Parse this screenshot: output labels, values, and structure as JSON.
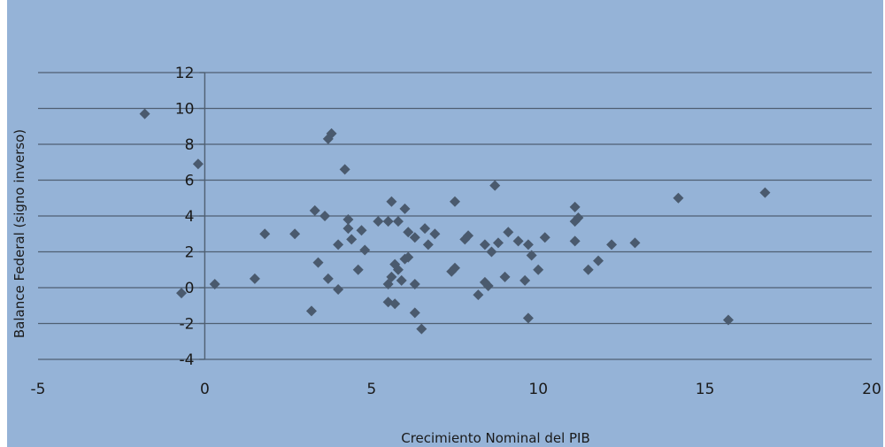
{
  "chart_data": {
    "type": "scatter",
    "xlabel": "Crecimiento Nominal del PIB",
    "ylabel": "Balance Federal (signo inverso)",
    "xlim": [
      -5,
      20
    ],
    "ylim": [
      -4,
      12
    ],
    "x_ticks": [
      -5,
      0,
      5,
      10,
      15,
      20
    ],
    "y_ticks": [
      -4,
      -2,
      0,
      2,
      4,
      6,
      8,
      10,
      12
    ],
    "horizontal_grid": true,
    "legend": "none",
    "colors": {
      "background": "#95b3d7",
      "marker": "#4a5a6e",
      "gridline": "#4f5f72",
      "axis": "#4f5f72"
    },
    "points": [
      {
        "x": -1.8,
        "y": 9.7
      },
      {
        "x": -0.2,
        "y": 6.9
      },
      {
        "x": -0.7,
        "y": -0.3
      },
      {
        "x": 0.3,
        "y": 0.2
      },
      {
        "x": 1.5,
        "y": 0.5
      },
      {
        "x": 1.8,
        "y": 3.0
      },
      {
        "x": 2.7,
        "y": 3.0
      },
      {
        "x": 3.2,
        "y": -1.3
      },
      {
        "x": 3.3,
        "y": 4.3
      },
      {
        "x": 3.4,
        "y": 1.4
      },
      {
        "x": 3.6,
        "y": 4.0
      },
      {
        "x": 3.7,
        "y": 8.3
      },
      {
        "x": 3.8,
        "y": 8.6
      },
      {
        "x": 3.7,
        "y": 0.5
      },
      {
        "x": 4.0,
        "y": -0.1
      },
      {
        "x": 4.0,
        "y": 2.4
      },
      {
        "x": 4.2,
        "y": 6.6
      },
      {
        "x": 4.3,
        "y": 3.8
      },
      {
        "x": 4.3,
        "y": 3.3
      },
      {
        "x": 4.4,
        "y": 2.7
      },
      {
        "x": 4.6,
        "y": 1.0
      },
      {
        "x": 4.7,
        "y": 3.2
      },
      {
        "x": 4.8,
        "y": 2.1
      },
      {
        "x": 5.2,
        "y": 3.7
      },
      {
        "x": 5.5,
        "y": 3.7
      },
      {
        "x": 5.5,
        "y": 0.2
      },
      {
        "x": 5.5,
        "y": -0.8
      },
      {
        "x": 5.6,
        "y": 4.8
      },
      {
        "x": 5.6,
        "y": 0.6
      },
      {
        "x": 5.7,
        "y": 1.3
      },
      {
        "x": 5.7,
        "y": -0.9
      },
      {
        "x": 5.8,
        "y": 3.7
      },
      {
        "x": 5.8,
        "y": 1.0
      },
      {
        "x": 5.9,
        "y": 0.4
      },
      {
        "x": 6.0,
        "y": 4.4
      },
      {
        "x": 6.0,
        "y": 1.6
      },
      {
        "x": 6.1,
        "y": 1.7
      },
      {
        "x": 6.1,
        "y": 3.1
      },
      {
        "x": 6.3,
        "y": 2.8
      },
      {
        "x": 6.3,
        "y": 0.2
      },
      {
        "x": 6.3,
        "y": -1.4
      },
      {
        "x": 6.5,
        "y": -2.3
      },
      {
        "x": 6.6,
        "y": 3.3
      },
      {
        "x": 6.7,
        "y": 2.4
      },
      {
        "x": 6.9,
        "y": 3.0
      },
      {
        "x": 7.4,
        "y": 0.9
      },
      {
        "x": 7.5,
        "y": 1.1
      },
      {
        "x": 7.5,
        "y": 4.8
      },
      {
        "x": 7.8,
        "y": 2.7
      },
      {
        "x": 7.9,
        "y": 2.9
      },
      {
        "x": 8.2,
        "y": -0.4
      },
      {
        "x": 8.4,
        "y": 2.4
      },
      {
        "x": 8.4,
        "y": 0.3
      },
      {
        "x": 8.5,
        "y": 0.1
      },
      {
        "x": 8.6,
        "y": 2.0
      },
      {
        "x": 8.7,
        "y": 5.7
      },
      {
        "x": 8.8,
        "y": 2.5
      },
      {
        "x": 9.0,
        "y": 0.6
      },
      {
        "x": 9.1,
        "y": 3.1
      },
      {
        "x": 9.4,
        "y": 2.6
      },
      {
        "x": 9.6,
        "y": 0.4
      },
      {
        "x": 9.7,
        "y": 2.4
      },
      {
        "x": 9.7,
        "y": -1.7
      },
      {
        "x": 9.8,
        "y": 1.8
      },
      {
        "x": 10.0,
        "y": 1.0
      },
      {
        "x": 10.2,
        "y": 2.8
      },
      {
        "x": 11.1,
        "y": 4.5
      },
      {
        "x": 11.1,
        "y": 3.7
      },
      {
        "x": 11.1,
        "y": 2.6
      },
      {
        "x": 11.2,
        "y": 3.9
      },
      {
        "x": 11.5,
        "y": 1.0
      },
      {
        "x": 11.8,
        "y": 1.5
      },
      {
        "x": 12.2,
        "y": 2.4
      },
      {
        "x": 12.9,
        "y": 2.5
      },
      {
        "x": 14.2,
        "y": 5.0
      },
      {
        "x": 15.7,
        "y": -1.8
      },
      {
        "x": 16.8,
        "y": 5.3
      }
    ]
  }
}
